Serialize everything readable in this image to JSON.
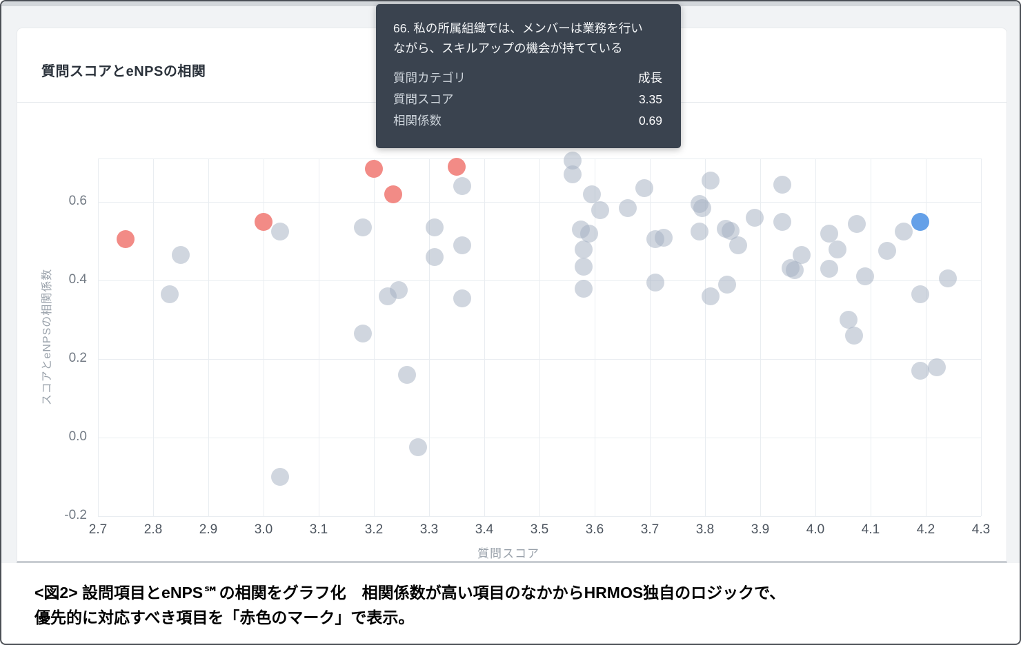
{
  "card": {
    "title": "質問スコアとeNPSの相関"
  },
  "tooltip": {
    "title_line1": "66. 私の所属組織では、メンバーは業務を行い",
    "title_line2": "ながら、スキルアップの機会が持てている",
    "rows": [
      {
        "label": "質問カテゴリ",
        "value": "成長"
      },
      {
        "label": "質問スコア",
        "value": "3.35"
      },
      {
        "label": "相関係数",
        "value": "0.69"
      }
    ]
  },
  "caption": {
    "line1": "<図2> 設問項目とeNPS℠の相関をグラフ化　相関係数が高い項目のなかからHRMOS独自のロジックで、",
    "line2": "優先的に対応すべき項目を「赤色のマーク」で表示。"
  },
  "chart_data": {
    "type": "scatter",
    "title": "質問スコアとeNPSの相関",
    "xlabel": "質問スコア",
    "ylabel": "スコアとeNPSの相関係数",
    "xlim": [
      2.7,
      4.3
    ],
    "ylim": [
      -0.2,
      0.711
    ],
    "x_ticks": [
      2.7,
      2.8,
      2.9,
      3.0,
      3.1,
      3.2,
      3.3,
      3.4,
      3.5,
      3.6,
      3.7,
      3.8,
      3.9,
      4.0,
      4.1,
      4.2,
      4.3
    ],
    "y_ticks": [
      -0.2,
      0.0,
      0.2,
      0.4,
      0.6
    ],
    "grid": true,
    "legend": "none",
    "colors": {
      "gray": "rgba(164,177,194,0.52)",
      "red": "#f28b86",
      "blue": "#64a0e8"
    },
    "series": [
      {
        "name": "question-gray",
        "color": "rgba(164,177,194,0.52)",
        "points": [
          [
            2.83,
            0.365
          ],
          [
            2.85,
            0.465
          ],
          [
            3.03,
            0.525
          ],
          [
            3.03,
            -0.1
          ],
          [
            3.18,
            0.535
          ],
          [
            3.18,
            0.265
          ],
          [
            3.225,
            0.36
          ],
          [
            3.245,
            0.375
          ],
          [
            3.26,
            0.16
          ],
          [
            3.28,
            -0.025
          ],
          [
            3.31,
            0.535
          ],
          [
            3.31,
            0.46
          ],
          [
            3.36,
            0.64
          ],
          [
            3.36,
            0.49
          ],
          [
            3.36,
            0.355
          ],
          [
            3.56,
            0.705
          ],
          [
            3.56,
            0.67
          ],
          [
            3.575,
            0.53
          ],
          [
            3.59,
            0.52
          ],
          [
            3.58,
            0.48
          ],
          [
            3.58,
            0.435
          ],
          [
            3.58,
            0.38
          ],
          [
            3.595,
            0.62
          ],
          [
            3.61,
            0.58
          ],
          [
            3.66,
            0.585
          ],
          [
            3.69,
            0.635
          ],
          [
            3.71,
            0.505
          ],
          [
            3.725,
            0.51
          ],
          [
            3.71,
            0.395
          ],
          [
            3.79,
            0.595
          ],
          [
            3.795,
            0.585
          ],
          [
            3.79,
            0.525
          ],
          [
            3.81,
            0.655
          ],
          [
            3.81,
            0.36
          ],
          [
            3.838,
            0.532
          ],
          [
            3.846,
            0.526
          ],
          [
            3.84,
            0.39
          ],
          [
            3.86,
            0.49
          ],
          [
            3.89,
            0.56
          ],
          [
            3.94,
            0.645
          ],
          [
            3.94,
            0.55
          ],
          [
            3.955,
            0.432
          ],
          [
            3.963,
            0.426
          ],
          [
            3.975,
            0.465
          ],
          [
            4.025,
            0.52
          ],
          [
            4.025,
            0.43
          ],
          [
            4.04,
            0.48
          ],
          [
            4.06,
            0.3
          ],
          [
            4.07,
            0.26
          ],
          [
            4.075,
            0.545
          ],
          [
            4.09,
            0.41
          ],
          [
            4.13,
            0.475
          ],
          [
            4.16,
            0.525
          ],
          [
            4.19,
            0.365
          ],
          [
            4.19,
            0.17
          ],
          [
            4.22,
            0.18
          ],
          [
            4.24,
            0.405
          ]
        ]
      },
      {
        "name": "priority-red",
        "color": "#f28b86",
        "points": [
          [
            2.75,
            0.505
          ],
          [
            3.0,
            0.55
          ],
          [
            3.2,
            0.685
          ],
          [
            3.235,
            0.62
          ],
          [
            3.35,
            0.69
          ]
        ]
      },
      {
        "name": "selected-blue",
        "color": "#64a0e8",
        "points": [
          [
            4.19,
            0.55
          ]
        ]
      }
    ]
  }
}
